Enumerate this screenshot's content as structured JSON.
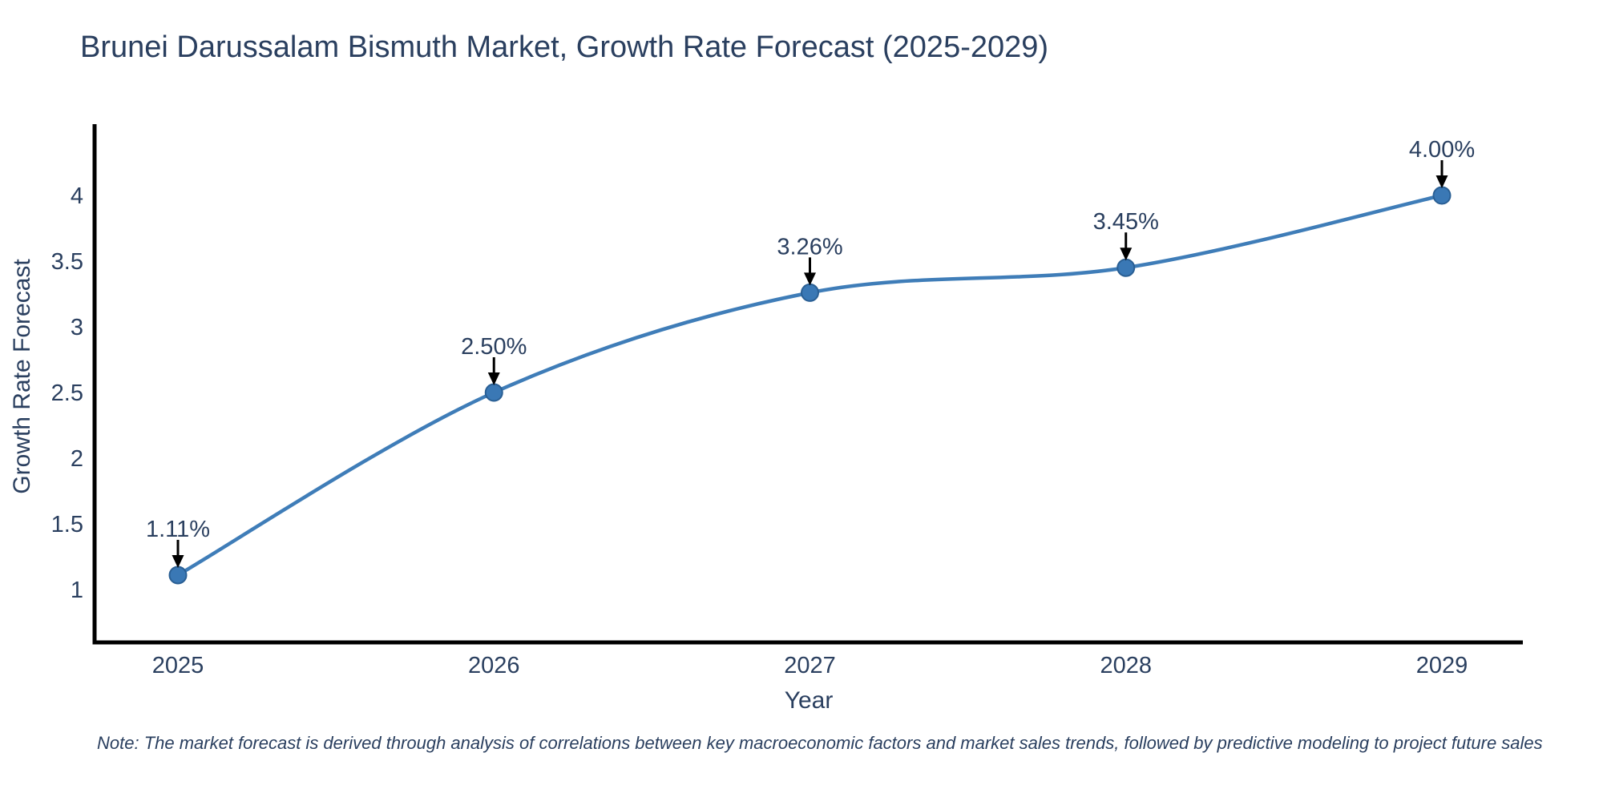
{
  "note": "Note: The market forecast is derived through analysis of correlations between key macroeconomic factors and market sales trends, followed by predictive modeling to project future sales",
  "chart_data": {
    "type": "line",
    "title": "Brunei Darussalam Bismuth Market, Growth Rate Forecast (2025-2029)",
    "xlabel": "Year",
    "ylabel": "Growth Rate Forecast",
    "categories": [
      "2025",
      "2026",
      "2027",
      "2028",
      "2029"
    ],
    "series": [
      {
        "name": "Growth Rate Forecast",
        "values": [
          1.11,
          2.5,
          3.26,
          3.45,
          4.0
        ],
        "point_labels": [
          "1.11%",
          "2.50%",
          "3.26%",
          "3.45%",
          "4.00%"
        ]
      }
    ],
    "yticks": [
      1,
      1.5,
      2,
      2.5,
      3,
      3.5,
      4
    ],
    "ytick_labels": [
      "1",
      "1.5",
      "2",
      "2.5",
      "3",
      "3.5",
      "4"
    ],
    "ylim": [
      0.6,
      4.55
    ],
    "grid": false,
    "legend_position": "none",
    "line_shape": "spline",
    "annotation_arrows": true,
    "colors": {
      "line": "#3f7db8",
      "marker_fill": "#3a78b5",
      "marker_stroke": "#2a5f94",
      "axis_line": "#000000",
      "text": "#2a3f5f",
      "arrow": "#000000",
      "background": "#ffffff"
    }
  }
}
